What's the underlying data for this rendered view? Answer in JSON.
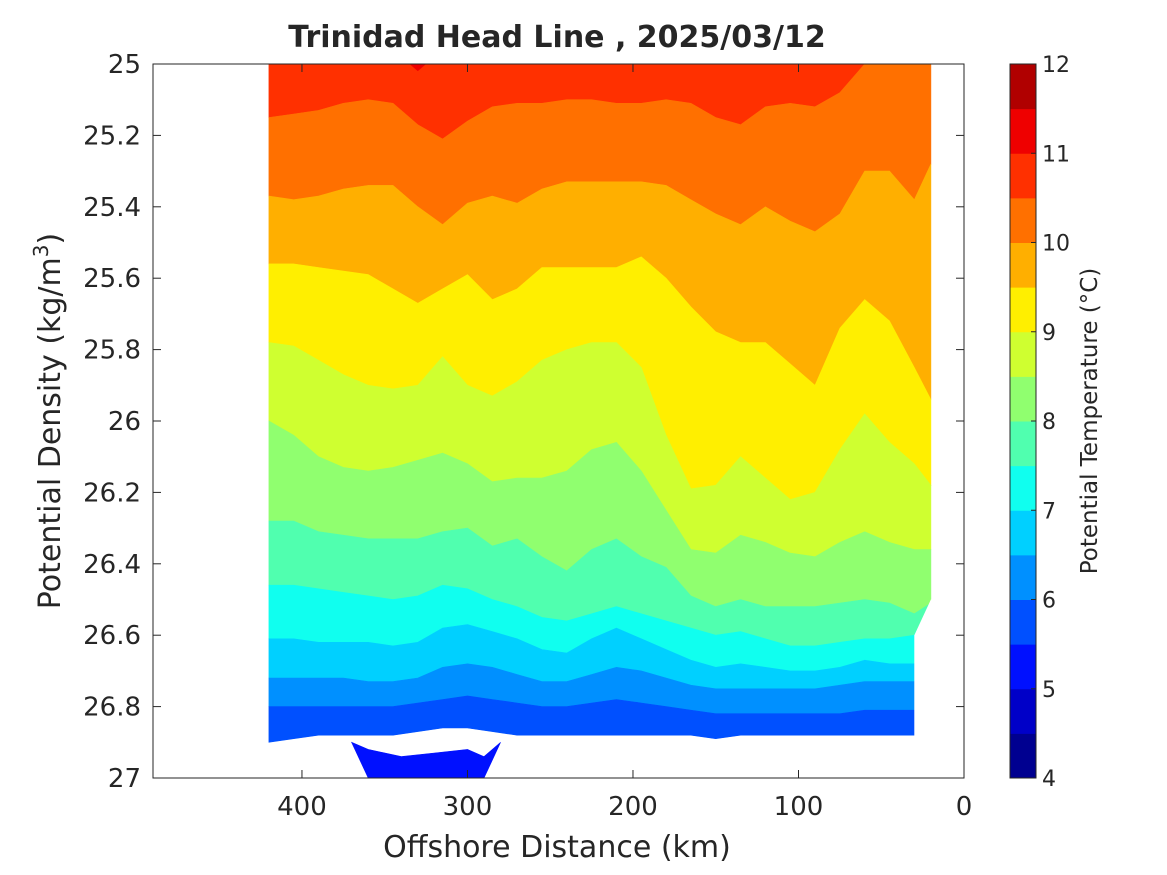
{
  "chart_data": {
    "type": "heatmap",
    "title": "Trinidad Head Line , 2025/03/12",
    "xlabel": "Offshore Distance (km)",
    "ylabel_main": "Potential Density (kg/m",
    "ylabel_sup": "3",
    "ylabel_end": ")",
    "colorbar_label": "Potential Temperature (°C)",
    "xlim": [
      490,
      0
    ],
    "ylim": [
      25,
      27
    ],
    "x_reversed": true,
    "y_reversed": true,
    "x_ticks": [
      400,
      300,
      200,
      100,
      0
    ],
    "x_tick_labels": [
      "400",
      "300",
      "200",
      "100",
      "0"
    ],
    "y_ticks": [
      25,
      25.2,
      25.4,
      25.6,
      25.8,
      26,
      26.2,
      26.4,
      26.6,
      26.8,
      27
    ],
    "y_tick_labels": [
      "25",
      "25.2",
      "25.4",
      "25.6",
      "25.8",
      "26",
      "26.2",
      "26.4",
      "26.6",
      "26.8",
      "27"
    ],
    "colorbar_ticks": [
      4,
      5,
      6,
      7,
      8,
      9,
      10,
      11,
      12
    ],
    "colorbar_tick_labels": [
      "4",
      "5",
      "6",
      "7",
      "8",
      "9",
      "10",
      "11",
      "12"
    ],
    "levels": [
      {
        "range": [
          4.0,
          4.5
        ],
        "color": "#000090"
      },
      {
        "range": [
          4.5,
          5.0
        ],
        "color": "#0000c8"
      },
      {
        "range": [
          5.0,
          5.5
        ],
        "color": "#0010ff"
      },
      {
        "range": [
          5.5,
          6.0
        ],
        "color": "#0050ff"
      },
      {
        "range": [
          6.0,
          6.5
        ],
        "color": "#0090ff"
      },
      {
        "range": [
          6.5,
          7.0
        ],
        "color": "#00d0ff"
      },
      {
        "range": [
          7.0,
          7.5
        ],
        "color": "#10ffef"
      },
      {
        "range": [
          7.5,
          8.0
        ],
        "color": "#50ffaf"
      },
      {
        "range": [
          8.0,
          8.5
        ],
        "color": "#90ff6f"
      },
      {
        "range": [
          8.5,
          9.0
        ],
        "color": "#cfff30"
      },
      {
        "range": [
          9.0,
          9.5
        ],
        "color": "#ffef00"
      },
      {
        "range": [
          9.5,
          10.0
        ],
        "color": "#ffaf00"
      },
      {
        "range": [
          10.0,
          10.5
        ],
        "color": "#ff7000"
      },
      {
        "range": [
          10.5,
          11.0
        ],
        "color": "#ff3000"
      },
      {
        "range": [
          11.0,
          11.5
        ],
        "color": "#ef0000"
      },
      {
        "range": [
          11.5,
          12.0
        ],
        "color": "#b00000"
      }
    ],
    "x": [
      420,
      405,
      390,
      375,
      360,
      345,
      330,
      315,
      300,
      285,
      270,
      255,
      240,
      225,
      210,
      195,
      180,
      165,
      150,
      135,
      120,
      105,
      90,
      75,
      60,
      45,
      30,
      20
    ],
    "isolines": [
      {
        "value": 10.5,
        "y": [
          25.15,
          25.14,
          25.13,
          25.11,
          25.1,
          25.11,
          25.17,
          25.21,
          25.16,
          25.12,
          25.11,
          25.11,
          25.1,
          25.1,
          25.11,
          25.11,
          25.1,
          25.11,
          25.15,
          25.17,
          25.12,
          25.11,
          25.12,
          25.08,
          24.99,
          25.0,
          25.0,
          25.0
        ]
      },
      {
        "value": 10.0,
        "y": [
          25.37,
          25.38,
          25.37,
          25.35,
          25.34,
          25.34,
          25.4,
          25.45,
          25.39,
          25.37,
          25.39,
          25.35,
          25.33,
          25.33,
          25.33,
          25.33,
          25.34,
          25.38,
          25.42,
          25.45,
          25.4,
          25.44,
          25.47,
          25.42,
          25.3,
          25.3,
          25.38,
          25.28
        ]
      },
      {
        "value": 9.5,
        "y": [
          25.56,
          25.56,
          25.57,
          25.58,
          25.59,
          25.63,
          25.67,
          25.63,
          25.59,
          25.66,
          25.63,
          25.57,
          25.57,
          25.57,
          25.57,
          25.54,
          25.6,
          25.68,
          25.75,
          25.78,
          25.78,
          25.84,
          25.9,
          25.74,
          25.66,
          25.72,
          25.85,
          25.94
        ]
      },
      {
        "value": 9.0,
        "y": [
          25.78,
          25.79,
          25.83,
          25.87,
          25.9,
          25.91,
          25.9,
          25.82,
          25.9,
          25.93,
          25.89,
          25.83,
          25.8,
          25.78,
          25.78,
          25.85,
          26.04,
          26.19,
          26.18,
          26.1,
          26.16,
          26.22,
          26.2,
          26.08,
          25.98,
          26.06,
          26.12,
          26.18
        ]
      },
      {
        "value": 8.5,
        "y": [
          26.0,
          26.04,
          26.1,
          26.13,
          26.14,
          26.13,
          26.11,
          26.09,
          26.12,
          26.17,
          26.16,
          26.16,
          26.14,
          26.08,
          26.06,
          26.14,
          26.25,
          26.36,
          26.37,
          26.32,
          26.34,
          26.37,
          26.38,
          26.34,
          26.31,
          26.34,
          26.36,
          26.36
        ]
      },
      {
        "value": 8.0,
        "y": [
          26.28,
          26.28,
          26.31,
          26.32,
          26.33,
          26.33,
          26.33,
          26.31,
          26.3,
          26.35,
          26.33,
          26.38,
          26.42,
          26.36,
          26.33,
          26.38,
          26.41,
          26.49,
          26.52,
          26.5,
          26.52,
          26.52,
          26.52,
          26.51,
          26.5,
          26.51,
          26.54,
          26.51
        ]
      },
      {
        "value": 7.5,
        "y": [
          26.46,
          26.46,
          26.47,
          26.48,
          26.49,
          26.5,
          26.49,
          26.46,
          26.47,
          26.5,
          26.52,
          26.55,
          26.56,
          26.54,
          26.52,
          26.54,
          26.56,
          26.58,
          26.6,
          26.59,
          26.61,
          26.63,
          26.63,
          26.62,
          26.61,
          26.61,
          26.6,
          26.51
        ]
      },
      {
        "value": 7.0,
        "y": [
          26.61,
          26.61,
          26.62,
          26.62,
          26.62,
          26.63,
          26.62,
          26.58,
          26.57,
          26.59,
          26.61,
          26.64,
          26.65,
          26.61,
          26.58,
          26.61,
          26.64,
          26.67,
          26.69,
          26.68,
          26.69,
          26.7,
          26.7,
          26.69,
          26.67,
          26.68,
          26.68,
          26.68
        ]
      },
      {
        "value": 6.5,
        "y": [
          26.72,
          26.72,
          26.72,
          26.72,
          26.73,
          26.73,
          26.72,
          26.69,
          26.68,
          26.69,
          26.71,
          26.73,
          26.73,
          26.71,
          26.69,
          26.7,
          26.72,
          26.74,
          26.75,
          26.75,
          26.75,
          26.75,
          26.75,
          26.74,
          26.73,
          26.73,
          26.73,
          26.73
        ]
      },
      {
        "value": 6.0,
        "y": [
          26.8,
          26.8,
          26.8,
          26.8,
          26.8,
          26.8,
          26.79,
          26.78,
          26.77,
          26.78,
          26.79,
          26.8,
          26.8,
          26.79,
          26.78,
          26.79,
          26.8,
          26.81,
          26.82,
          26.82,
          26.82,
          26.82,
          26.82,
          26.82,
          26.81,
          26.81,
          26.81,
          26.81
        ]
      },
      {
        "value": 5.5,
        "y": [
          26.9,
          26.89,
          26.88,
          26.88,
          26.88,
          26.88,
          26.87,
          26.86,
          26.86,
          26.87,
          26.88,
          26.88,
          26.88,
          26.88,
          26.88,
          26.88,
          26.88,
          26.88,
          26.89,
          26.88,
          26.88,
          26.88,
          26.88,
          26.88,
          26.88,
          26.88,
          26.88,
          26.88
        ]
      }
    ],
    "deep_blue_patch": {
      "value": 5.25,
      "x": [
        370,
        360,
        340,
        320,
        300,
        290,
        280
      ],
      "y_top": [
        26.9,
        26.92,
        26.94,
        26.93,
        26.92,
        26.94,
        26.9
      ],
      "y_bottom": [
        26.9,
        27.0,
        27.0,
        27.0,
        27.0,
        27.0,
        26.9
      ]
    },
    "data_extent_bottom": [
      {
        "x": 420,
        "y": 26.9
      },
      {
        "x": 30,
        "y": 26.9
      },
      {
        "x": 30,
        "y": 26.6
      },
      {
        "x": 20,
        "y": 26.5
      }
    ]
  }
}
